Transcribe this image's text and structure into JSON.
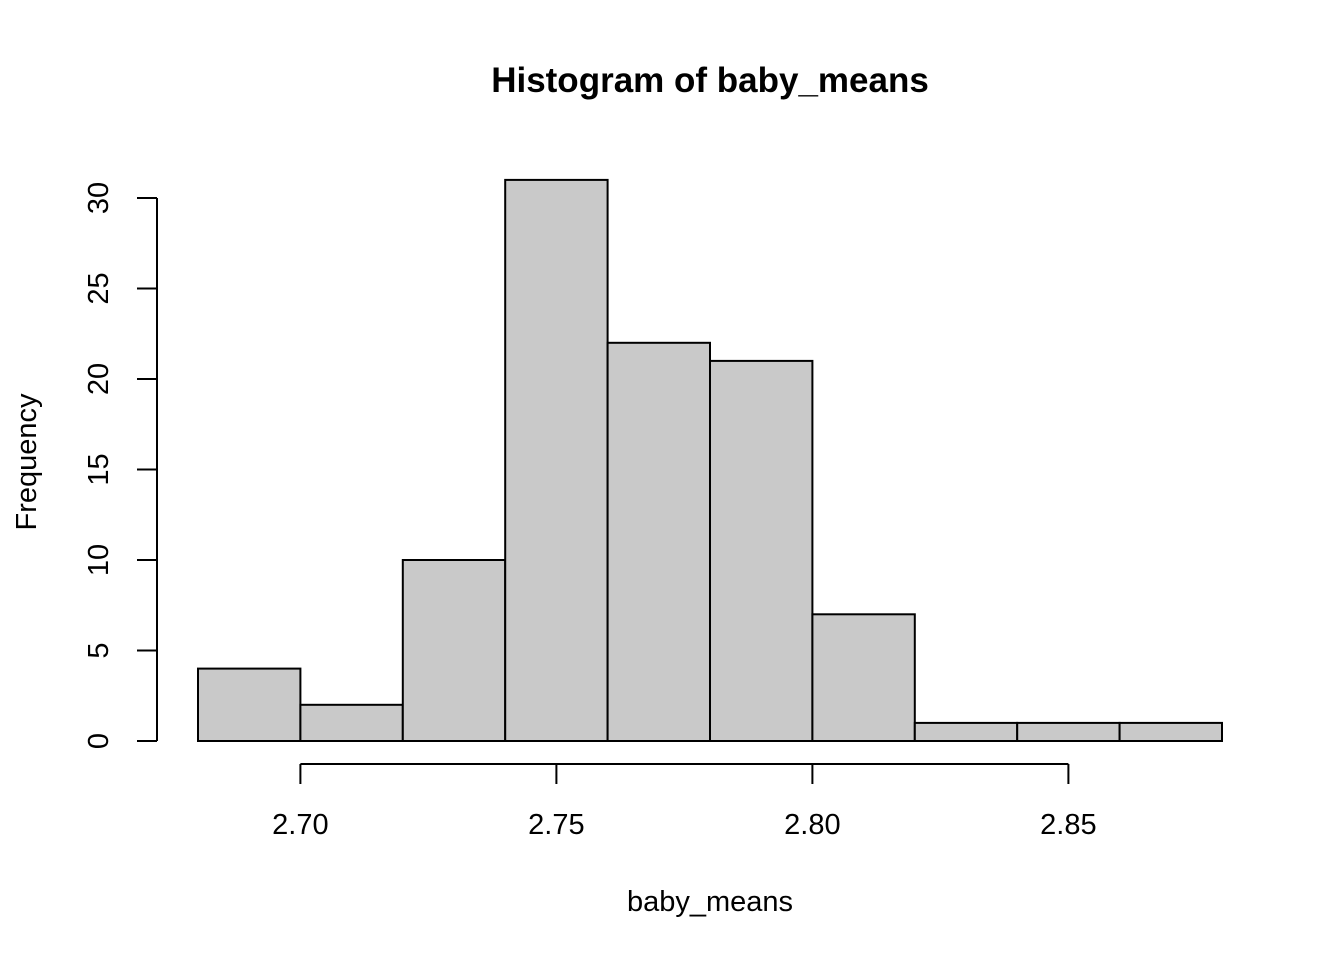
{
  "chart_data": {
    "type": "bar",
    "title": "Histogram of baby_means",
    "xlabel": "baby_means",
    "ylabel": "Frequency",
    "bins": [
      {
        "from": 2.68,
        "to": 2.7,
        "count": 4
      },
      {
        "from": 2.7,
        "to": 2.72,
        "count": 2
      },
      {
        "from": 2.72,
        "to": 2.74,
        "count": 10
      },
      {
        "from": 2.74,
        "to": 2.76,
        "count": 31
      },
      {
        "from": 2.76,
        "to": 2.78,
        "count": 22
      },
      {
        "from": 2.78,
        "to": 2.8,
        "count": 21
      },
      {
        "from": 2.8,
        "to": 2.82,
        "count": 7
      },
      {
        "from": 2.82,
        "to": 2.84,
        "count": 1
      },
      {
        "from": 2.84,
        "to": 2.86,
        "count": 1
      },
      {
        "from": 2.86,
        "to": 2.88,
        "count": 1
      }
    ],
    "x_ticks": [
      2.7,
      2.75,
      2.8,
      2.85
    ],
    "x_tick_labels": [
      "2.70",
      "2.75",
      "2.80",
      "2.85"
    ],
    "y_ticks": [
      0,
      5,
      10,
      15,
      20,
      25,
      30
    ],
    "y_tick_labels": [
      "0",
      "5",
      "10",
      "15",
      "20",
      "25",
      "30"
    ],
    "xlim": [
      2.68,
      2.88
    ],
    "ylim": [
      0,
      31
    ],
    "grid": false
  }
}
